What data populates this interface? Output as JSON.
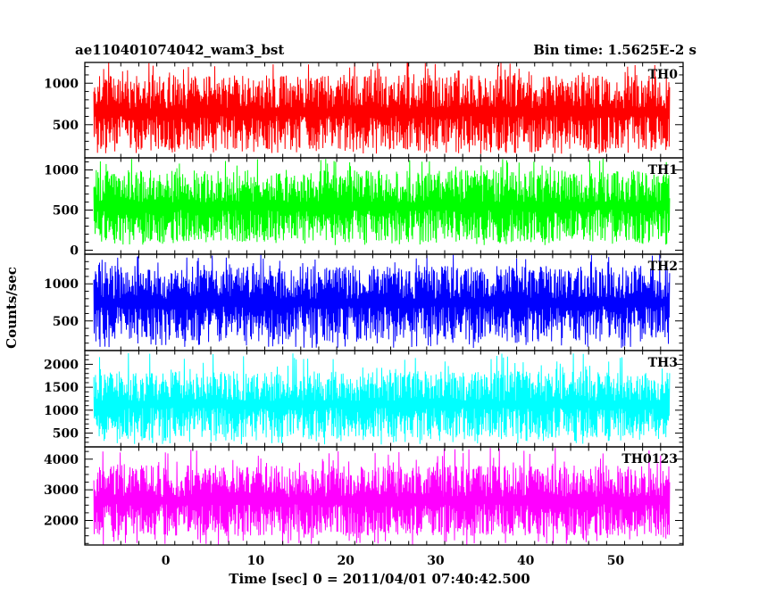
{
  "header": {
    "title": "ae110401074042_wam3_bst",
    "bin_time": "Bin time: 1.5625E-2 s"
  },
  "axes": {
    "xlabel": "Time [sec] 0 = 2011/04/01 07:40:42.500",
    "ylabel": "Counts/sec"
  },
  "chart_data": {
    "type": "line",
    "title": "ae110401074042_wam3_bst",
    "xlabel": "Time [sec] 0 = 2011/04/01 07:40:42.500",
    "ylabel": "Counts/sec",
    "xlim": [
      -9,
      57.5
    ],
    "x_range_data": [
      -8,
      56
    ],
    "bin_time_s": 0.015625,
    "x_ticks": [
      0,
      10,
      20,
      30,
      40,
      50
    ],
    "grid": false,
    "panels": [
      {
        "name": "TH0",
        "color": "#ff0000",
        "ylim": [
          100,
          1250
        ],
        "y_ticks": [
          500,
          1000
        ],
        "level": [
          150,
          230
        ],
        "peak": [
          900,
          1250
        ],
        "band": [
          200,
          1100
        ]
      },
      {
        "name": "TH1",
        "color": "#00ff00",
        "ylim": [
          -50,
          1150
        ],
        "y_ticks": [
          0,
          500,
          1000
        ],
        "level": [
          60,
          160
        ],
        "peak": [
          750,
          1150
        ],
        "band": [
          100,
          1000
        ]
      },
      {
        "name": "TH2",
        "color": "#0000ff",
        "ylim": [
          100,
          1400
        ],
        "y_ticks": [
          500,
          1000
        ],
        "level": [
          130,
          260
        ],
        "peak": [
          1050,
          1400
        ],
        "band": [
          250,
          1250
        ]
      },
      {
        "name": "TH3",
        "color": "#00ffff",
        "ylim": [
          200,
          2300
        ],
        "y_ticks": [
          500,
          1000,
          1500,
          2000
        ],
        "level": [
          250,
          450
        ],
        "peak": [
          1550,
          2250
        ],
        "band": [
          400,
          1850
        ]
      },
      {
        "name": "TH0123",
        "color": "#ff00ff",
        "ylim": [
          1200,
          4400
        ],
        "y_ticks": [
          2000,
          3000,
          4000
        ],
        "level": [
          1200,
          1650
        ],
        "peak": [
          3200,
          4400
        ],
        "band": [
          1500,
          3800
        ]
      }
    ]
  }
}
